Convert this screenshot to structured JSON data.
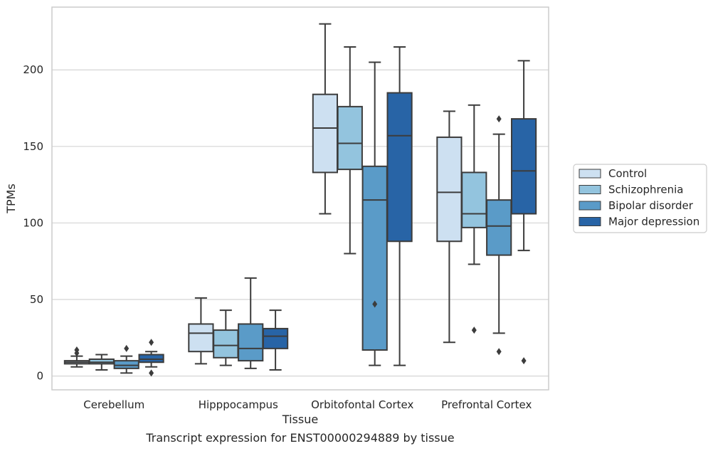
{
  "chart_data": {
    "type": "box",
    "caption": "Transcript expression for ENST00000294889 by tissue",
    "xlabel": "Tissue",
    "ylabel": "TPMs",
    "ylim": [
      -9,
      241
    ],
    "yticks": [
      0,
      50,
      100,
      150,
      200
    ],
    "grid": "horizontal",
    "legend_position": "right",
    "categories": [
      "Cerebellum",
      "Hipppocampus",
      "Orbitofontal Cortex",
      "Prefrontal Cortex"
    ],
    "series": [
      {
        "name": "Control",
        "color": "#cde0f1",
        "boxes": [
          {
            "whislo": 6,
            "q1": 8,
            "med": 9,
            "q3": 10,
            "whishi": 13,
            "fliers": [
              15,
              17
            ]
          },
          {
            "whislo": 8,
            "q1": 16,
            "med": 28,
            "q3": 34,
            "whishi": 51,
            "fliers": []
          },
          {
            "whislo": 106,
            "q1": 133,
            "med": 162,
            "q3": 184,
            "whishi": 230,
            "fliers": []
          },
          {
            "whislo": 22,
            "q1": 88,
            "med": 120,
            "q3": 156,
            "whishi": 173,
            "fliers": []
          }
        ]
      },
      {
        "name": "Schizophrenia",
        "color": "#93c4de",
        "boxes": [
          {
            "whislo": 4,
            "q1": 8,
            "med": 9,
            "q3": 11,
            "whishi": 14,
            "fliers": []
          },
          {
            "whislo": 7,
            "q1": 12,
            "med": 20,
            "q3": 30,
            "whishi": 43,
            "fliers": []
          },
          {
            "whislo": 80,
            "q1": 135,
            "med": 152,
            "q3": 176,
            "whishi": 215,
            "fliers": []
          },
          {
            "whislo": 73,
            "q1": 97,
            "med": 106,
            "q3": 133,
            "whishi": 177,
            "fliers": [
              30
            ]
          }
        ]
      },
      {
        "name": "Bipolar disorder",
        "color": "#5a9bc8",
        "boxes": [
          {
            "whislo": 2,
            "q1": 5,
            "med": 7,
            "q3": 10,
            "whishi": 13,
            "fliers": [
              18
            ]
          },
          {
            "whislo": 5,
            "q1": 10,
            "med": 18,
            "q3": 34,
            "whishi": 64,
            "fliers": []
          },
          {
            "whislo": 7,
            "q1": 17,
            "med": 115,
            "q3": 137,
            "whishi": 205,
            "fliers": [
              47
            ]
          },
          {
            "whislo": 28,
            "q1": 79,
            "med": 98,
            "q3": 115,
            "whishi": 158,
            "fliers": [
              168,
              16
            ]
          }
        ]
      },
      {
        "name": "Major depression",
        "color": "#2864a6",
        "boxes": [
          {
            "whislo": 6,
            "q1": 9,
            "med": 11,
            "q3": 14,
            "whishi": 16,
            "fliers": [
              22,
              2
            ]
          },
          {
            "whislo": 4,
            "q1": 18,
            "med": 26,
            "q3": 31,
            "whishi": 43,
            "fliers": []
          },
          {
            "whislo": 7,
            "q1": 88,
            "med": 157,
            "q3": 185,
            "whishi": 215,
            "fliers": []
          },
          {
            "whislo": 82,
            "q1": 106,
            "med": 134,
            "q3": 168,
            "whishi": 206,
            "fliers": [
              10
            ]
          }
        ]
      }
    ]
  }
}
